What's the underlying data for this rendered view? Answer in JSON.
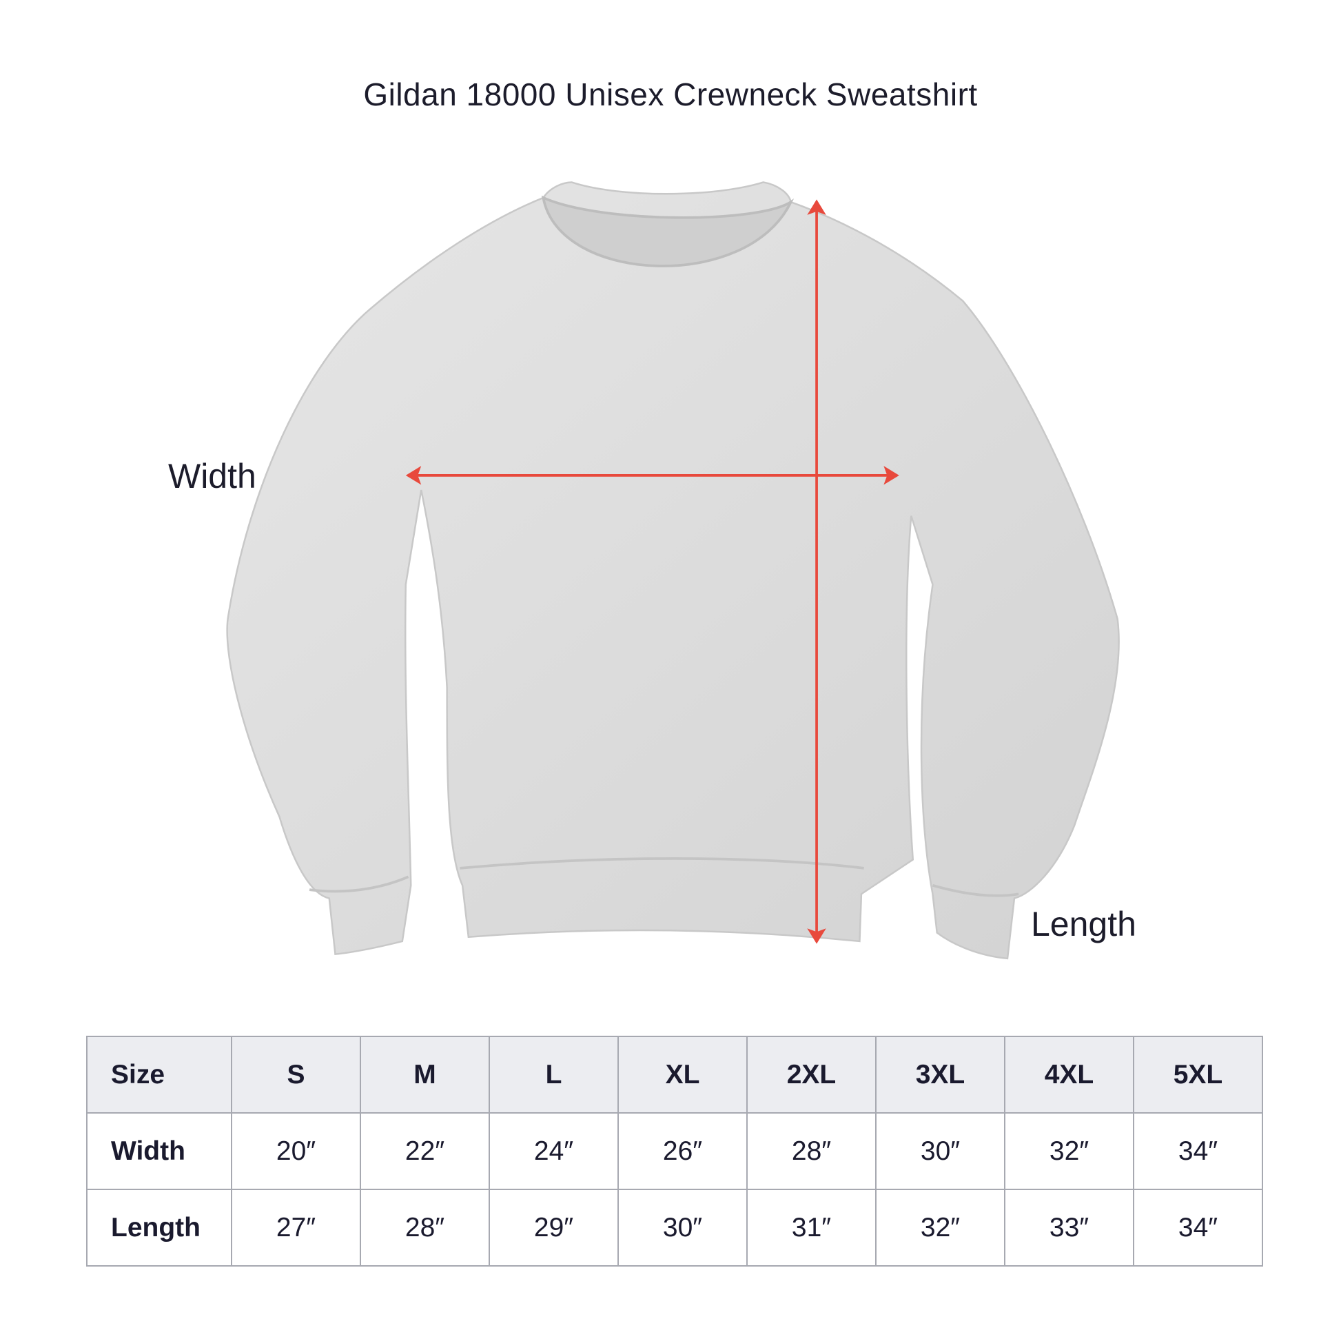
{
  "title": "Gildan 18000 Unisex Crewneck Sweatshirt",
  "labels": {
    "width": "Width",
    "length": "Length"
  },
  "colors": {
    "arrow": "#e8493c",
    "header_bg": "#ecedf1",
    "sweatshirt": "#dcdcdc"
  },
  "table": {
    "header": [
      "Size",
      "S",
      "M",
      "L",
      "XL",
      "2XL",
      "3XL",
      "4XL",
      "5XL"
    ],
    "rows": [
      [
        "Width",
        "20″",
        "22″",
        "24″",
        "26″",
        "28″",
        "30″",
        "32″",
        "34″"
      ],
      [
        "Length",
        "27″",
        "28″",
        "29″",
        "30″",
        "31″",
        "32″",
        "33″",
        "34″"
      ]
    ]
  }
}
